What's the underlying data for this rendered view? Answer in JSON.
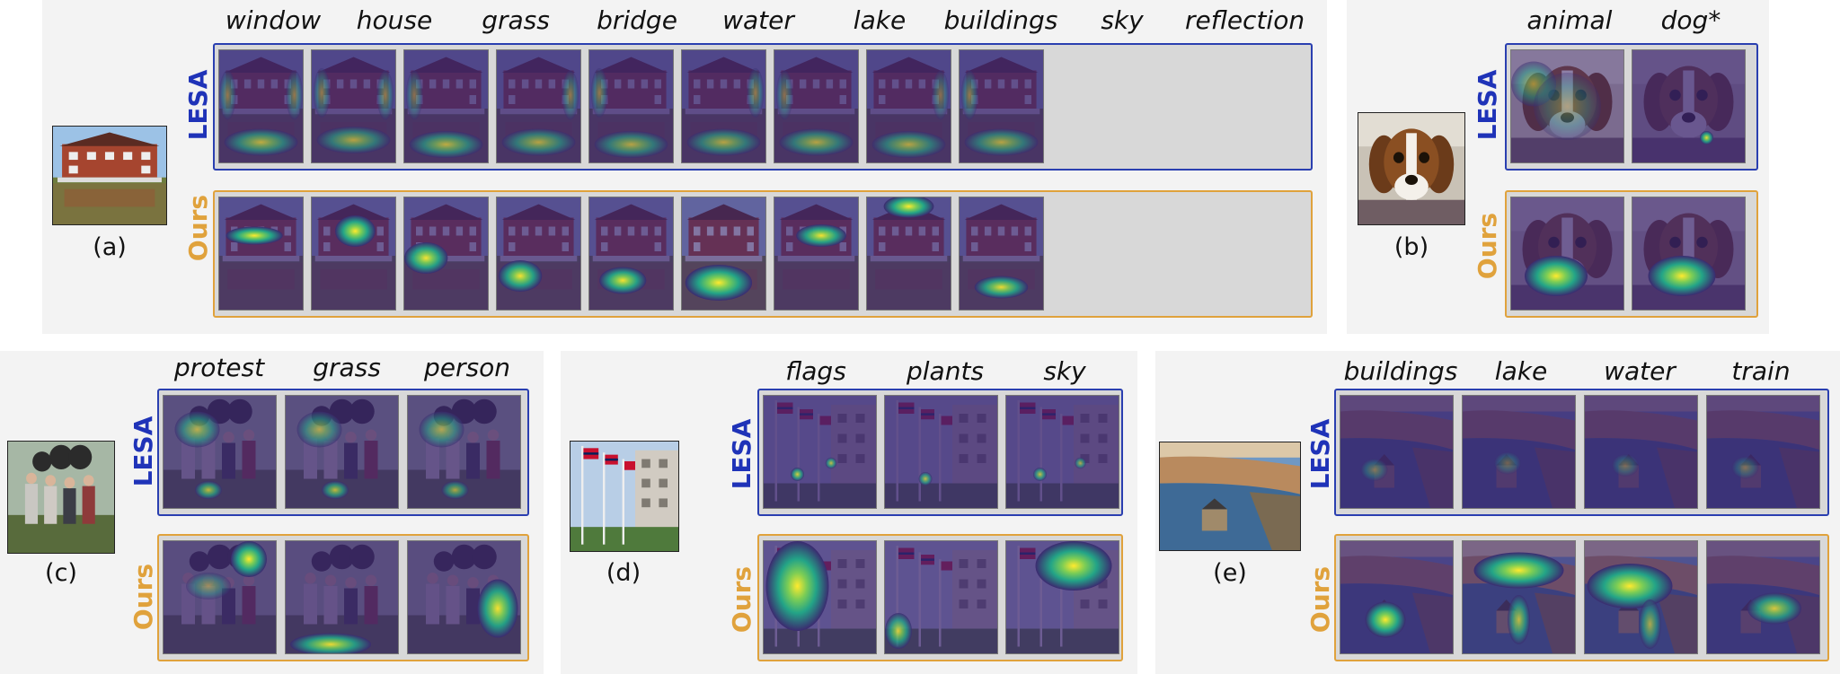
{
  "row_labels": {
    "lesa": "LESA",
    "ours": "Ours"
  },
  "colors": {
    "lesa": "#2a3fb0",
    "ours": "#e0a23c",
    "panel_bg": "#f3f3f3"
  },
  "panels": [
    {
      "id": "a",
      "caption": "(a)",
      "scene": "house-lake",
      "labels": [
        "window",
        "house",
        "grass",
        "bridge",
        "water",
        "lake",
        "buildings",
        "sky",
        "reflection"
      ]
    },
    {
      "id": "b",
      "caption": "(b)",
      "scene": "dog",
      "labels": [
        "animal",
        "dog*"
      ]
    },
    {
      "id": "c",
      "caption": "(c)",
      "scene": "protest",
      "labels": [
        "protest",
        "grass",
        "person"
      ]
    },
    {
      "id": "d",
      "caption": "(d)",
      "scene": "flags",
      "labels": [
        "flags",
        "plants",
        "sky"
      ]
    },
    {
      "id": "e",
      "caption": "(e)",
      "scene": "coast",
      "labels": [
        "buildings",
        "lake",
        "water",
        "train"
      ]
    }
  ]
}
